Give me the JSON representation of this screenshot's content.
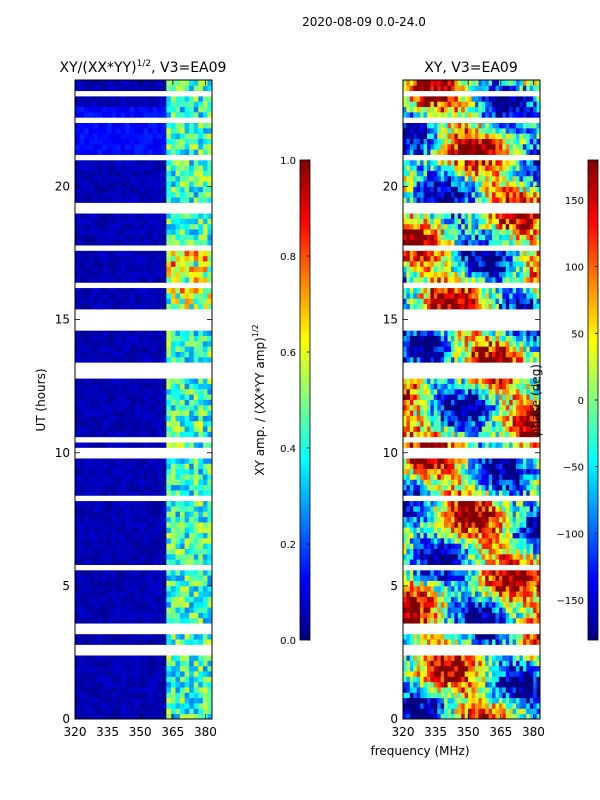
{
  "suptitle": "2020-08-09 0.0-24.0",
  "colors": {
    "jet": [
      "#000080",
      "#0000ff",
      "#0080ff",
      "#00ffff",
      "#80ff80",
      "#ffff00",
      "#ff8000",
      "#ff0000",
      "#800000"
    ],
    "gap": "#ffffff"
  },
  "chart_data": [
    {
      "type": "heatmap",
      "title_main": "XY/(XX*YY)",
      "title_sup": "1/2",
      "title_tail": ", V3=EA09",
      "ylabel": "UT (hours)",
      "xlabel": "",
      "xlim": [
        320,
        383
      ],
      "ylim": [
        0,
        24
      ],
      "xticks": [
        320,
        335,
        350,
        365,
        380
      ],
      "xtick_labels": [
        "320",
        "335",
        "350",
        "365",
        "380"
      ],
      "yticks": [
        0,
        5,
        10,
        15,
        20
      ],
      "ytick_labels": [
        "0",
        "5",
        "10",
        "15",
        "20"
      ],
      "colorbar": {
        "label_main": "XY amp. / (XX*YY amp)",
        "label_sup": "1/2",
        "range": [
          0.0,
          1.0
        ],
        "ticks": [
          0.0,
          0.2,
          0.4,
          0.6,
          0.8,
          1.0
        ],
        "tick_labels": [
          "0.0",
          "0.2",
          "0.4",
          "0.6",
          "0.8",
          "1.0"
        ]
      }
    },
    {
      "type": "heatmap",
      "title_main": "XY, V3=EA09",
      "title_sup": "",
      "title_tail": "",
      "ylabel": "",
      "xlabel": "frequency (MHz)",
      "xlim": [
        320,
        383
      ],
      "ylim": [
        0,
        24
      ],
      "xticks": [
        320,
        335,
        350,
        365,
        380
      ],
      "xtick_labels": [
        "320",
        "335",
        "350",
        "365",
        "380"
      ],
      "yticks": [
        0,
        5,
        10,
        15,
        20
      ],
      "ytick_labels": [
        "0",
        "5",
        "10",
        "15",
        "20"
      ],
      "colorbar": {
        "label_main": "phase (deg)",
        "label_sup": "",
        "range": [
          -180,
          180
        ],
        "ticks": [
          -150,
          -100,
          -50,
          0,
          50,
          100,
          150
        ],
        "tick_labels": [
          "−150",
          "−100",
          "−50",
          "0",
          "50",
          "100",
          "150"
        ]
      }
    }
  ]
}
